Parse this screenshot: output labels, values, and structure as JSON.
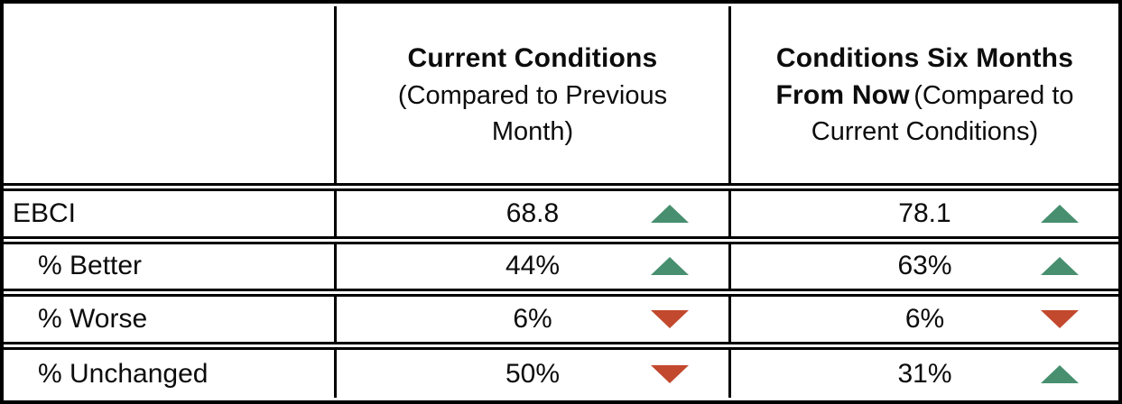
{
  "chart_data": {
    "type": "table",
    "columns": [
      {
        "title": "",
        "subtitle": ""
      },
      {
        "title": "Current Conditions",
        "subtitle": "(Compared to Previous Month)"
      },
      {
        "title": "Conditions Six Months From Now",
        "subtitle": "(Compared to Current Conditions)"
      }
    ],
    "rows": [
      {
        "label": "EBCI",
        "current_value": "68.8",
        "current_trend": "up",
        "future_value": "78.1",
        "future_trend": "up"
      },
      {
        "label": "% Better",
        "current_value": "44%",
        "current_trend": "up",
        "future_value": "63%",
        "future_trend": "up"
      },
      {
        "label": "% Worse",
        "current_value": "6%",
        "current_trend": "down",
        "future_value": "6%",
        "future_trend": "down"
      },
      {
        "label": "% Unchanged",
        "current_value": "50%",
        "current_trend": "down",
        "future_value": "31%",
        "future_trend": "up"
      }
    ],
    "colors": {
      "trend_up": "#478f6f",
      "trend_down": "#c2492e",
      "border": "#000000",
      "background": "#ffffff"
    }
  }
}
